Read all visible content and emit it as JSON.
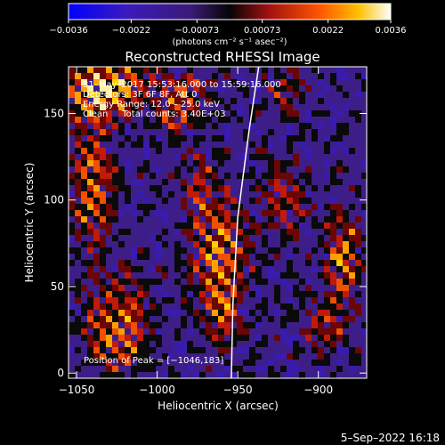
{
  "chart_data": {
    "type": "heatmap",
    "title": "Reconstructed RHESSI Image",
    "xlabel": "Heliocentric X (arcsec)",
    "ylabel": "Heliocentric Y (arcsec)",
    "xlim": [
      -1055,
      -870
    ],
    "ylim": [
      -3,
      177
    ],
    "x_ticks": [
      -1050,
      -1000,
      -950,
      -900
    ],
    "x_tick_labels": [
      "−1050",
      "−1000",
      "−950",
      "−900"
    ],
    "y_ticks": [
      0,
      50,
      100,
      150
    ],
    "y_tick_labels": [
      "0",
      "50",
      "100",
      "150"
    ],
    "colorbar": {
      "range": [
        -0.0036,
        0.0036
      ],
      "ticks": [
        -0.0036,
        -0.0022,
        -0.00073,
        0.00073,
        0.0022,
        0.0036
      ],
      "tick_labels": [
        "−0.0036",
        "−0.0022",
        "−0.00073",
        "0.00073",
        "0.0022",
        "0.0036"
      ],
      "units": "(photons cm⁻² s⁻¹ asec⁻²)"
    },
    "annotations": [
      "31–May–2017 15:53:16.000 to 15:59:16.000",
      "Detectors: 3F 6F 8F, Att 0",
      "Energy Range: 12.0 – 25.0 keV",
      "Clean     Total counts: 3.40E+03"
    ],
    "peak_label": "Position of Peak = [−1046,183]",
    "limb": {
      "x": [
        -937,
        -943,
        -950,
        -953,
        -954
      ],
      "y": [
        177,
        140,
        90,
        40,
        -3
      ]
    },
    "grid": false
  },
  "footer": {
    "date": "5–Sep–2022 16:18"
  }
}
